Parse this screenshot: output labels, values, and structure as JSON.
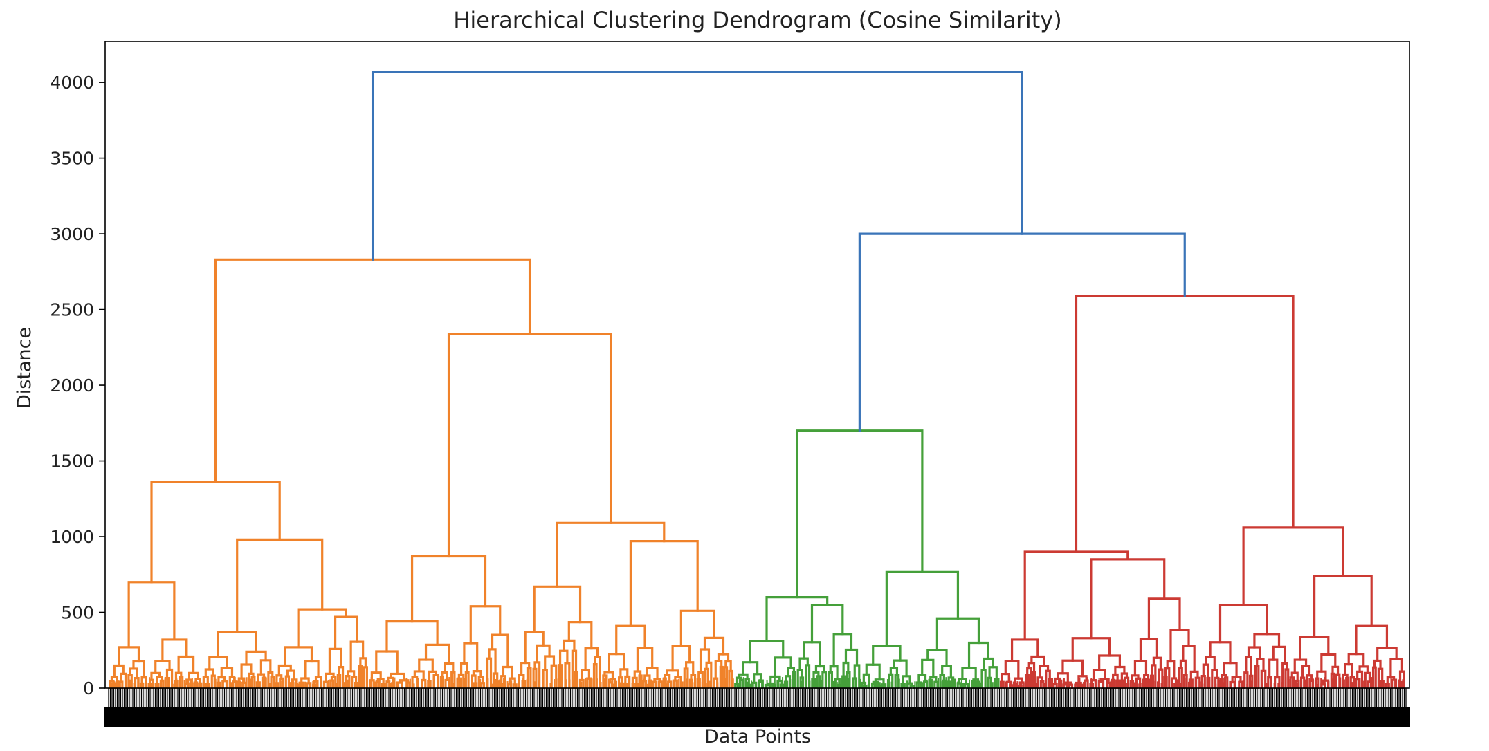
{
  "chart_data": {
    "type": "dendrogram",
    "title": "Hierarchical Clustering Dendrogram (Cosine Similarity)",
    "xlabel": "Data Points",
    "ylabel": "Distance",
    "ylim": [
      0,
      4270
    ],
    "yticks": [
      0,
      500,
      1000,
      1500,
      2000,
      2500,
      3000,
      3500,
      4000
    ],
    "grid": false,
    "colors": {
      "root": "#3a74b8",
      "cluster1": "#f0822a",
      "cluster2": "#45a03a",
      "cluster3": "#cc3a33",
      "axis": "#000000"
    },
    "leaf_span": [
      0,
      1000
    ],
    "clusters": [
      {
        "name": "cluster1",
        "color": "#f0822a",
        "span": [
          0,
          482
        ]
      },
      {
        "name": "cluster2",
        "color": "#45a03a",
        "span": [
          482,
          687
        ]
      },
      {
        "name": "cluster3",
        "color": "#cc3a33",
        "span": [
          687,
          1000
        ]
      }
    ],
    "tree": {
      "h": 4070,
      "c": "root",
      "children": [
        {
          "h": 2830,
          "c": "cluster1",
          "children": [
            {
              "h": 1360,
              "c": "cluster1",
              "children": [
                {
                  "h": 700,
                  "c": "cluster1",
                  "children": [
                    {
                      "h": 270,
                      "c": "cluster1",
                      "leaves": [
                        0,
                        30
                      ]
                    },
                    {
                      "h": 320,
                      "c": "cluster1",
                      "leaves": [
                        30,
                        72
                      ]
                    }
                  ]
                },
                {
                  "h": 980,
                  "c": "cluster1",
                  "children": [
                    {
                      "h": 370,
                      "c": "cluster1",
                      "leaves": [
                        72,
                        128
                      ]
                    },
                    {
                      "h": 520,
                      "c": "cluster1",
                      "children": [
                        {
                          "h": 270,
                          "c": "cluster1",
                          "leaves": [
                            128,
                            165
                          ]
                        },
                        {
                          "h": 470,
                          "c": "cluster1",
                          "leaves": [
                            165,
                            200
                          ]
                        }
                      ]
                    }
                  ]
                }
              ]
            },
            {
              "h": 2340,
              "c": "cluster1",
              "children": [
                {
                  "h": 870,
                  "c": "cluster1",
                  "children": [
                    {
                      "h": 440,
                      "c": "cluster1",
                      "leaves": [
                        200,
                        268
                      ]
                    },
                    {
                      "h": 540,
                      "c": "cluster1",
                      "leaves": [
                        268,
                        315
                      ]
                    }
                  ]
                },
                {
                  "h": 1090,
                  "c": "cluster1",
                  "children": [
                    {
                      "h": 670,
                      "c": "cluster1",
                      "leaves": [
                        315,
                        380
                      ]
                    },
                    {
                      "h": 970,
                      "c": "cluster1",
                      "children": [
                        {
                          "h": 410,
                          "c": "cluster1",
                          "leaves": [
                            380,
                            427
                          ]
                        },
                        {
                          "h": 510,
                          "c": "cluster1",
                          "leaves": [
                            427,
                            482
                          ]
                        }
                      ]
                    }
                  ]
                }
              ]
            }
          ]
        },
        {
          "h": 3000,
          "c": "root",
          "children": [
            {
              "h": 1700,
              "c": "cluster2",
              "children": [
                {
                  "h": 600,
                  "c": "cluster2",
                  "children": [
                    {
                      "h": 310,
                      "c": "cluster2",
                      "leaves": [
                        482,
                        530
                      ]
                    },
                    {
                      "h": 550,
                      "c": "cluster2",
                      "leaves": [
                        530,
                        580
                      ]
                    }
                  ]
                },
                {
                  "h": 770,
                  "c": "cluster2",
                  "children": [
                    {
                      "h": 280,
                      "c": "cluster2",
                      "leaves": [
                        580,
                        622
                      ]
                    },
                    {
                      "h": 460,
                      "c": "cluster2",
                      "leaves": [
                        622,
                        687
                      ]
                    }
                  ]
                }
              ]
            },
            {
              "h": 2590,
              "c": "cluster3",
              "children": [
                {
                  "h": 900,
                  "c": "cluster3",
                  "children": [
                    {
                      "h": 320,
                      "c": "cluster3",
                      "leaves": [
                        687,
                        727
                      ]
                    },
                    {
                      "h": 850,
                      "c": "cluster3",
                      "children": [
                        {
                          "h": 330,
                          "c": "cluster3",
                          "leaves": [
                            727,
                            787
                          ]
                        },
                        {
                          "h": 590,
                          "c": "cluster3",
                          "leaves": [
                            787,
                            842
                          ]
                        }
                      ]
                    }
                  ]
                },
                {
                  "h": 1060,
                  "c": "cluster3",
                  "children": [
                    {
                      "h": 550,
                      "c": "cluster3",
                      "leaves": [
                        842,
                        910
                      ]
                    },
                    {
                      "h": 740,
                      "c": "cluster3",
                      "children": [
                        {
                          "h": 340,
                          "c": "cluster3",
                          "leaves": [
                            910,
                            950
                          ]
                        },
                        {
                          "h": 410,
                          "c": "cluster3",
                          "leaves": [
                            950,
                            1000
                          ]
                        }
                      ]
                    }
                  ]
                }
              ]
            }
          ]
        }
      ]
    }
  }
}
